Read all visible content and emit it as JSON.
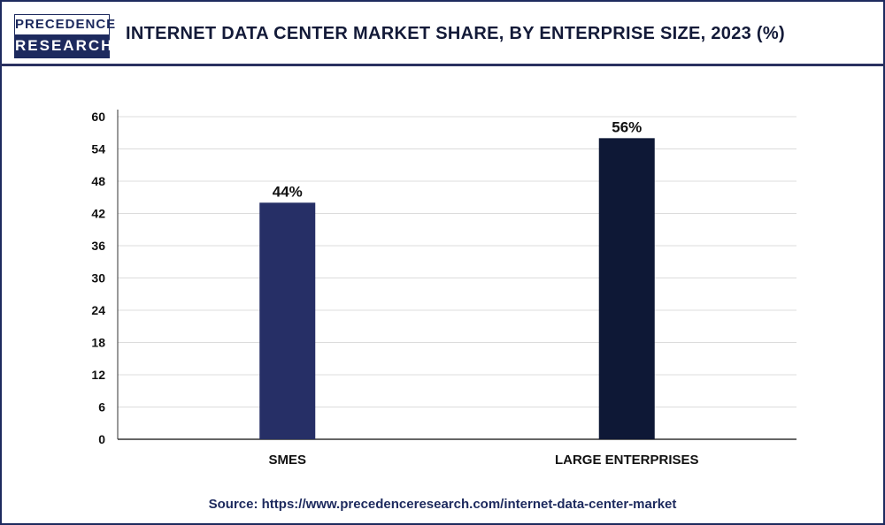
{
  "header": {
    "logo": {
      "line1": "PRECEDENCE",
      "line2": "RESEARCH"
    },
    "title": "INTERNET DATA CENTER MARKET SHARE, BY ENTERPRISE SIZE, 2023 (%)"
  },
  "chart_data": {
    "type": "bar",
    "title": "INTERNET DATA CENTER MARKET SHARE, BY ENTERPRISE SIZE, 2023 (%)",
    "categories": [
      "SMEs",
      "LARGE ENTERPRISES"
    ],
    "values": [
      44,
      56
    ],
    "data_labels": [
      "44%",
      "56%"
    ],
    "colors": [
      "#262f66",
      "#0e1836"
    ],
    "ylim": [
      0,
      60
    ],
    "yticks": [
      "0",
      "6",
      "12",
      "18",
      "24",
      "30",
      "36",
      "42",
      "48",
      "54",
      "60"
    ],
    "grid": true,
    "xlabel": "",
    "ylabel": ""
  },
  "footer": {
    "source": "Source: https://www.precedenceresearch.com/internet-data-center-market"
  }
}
